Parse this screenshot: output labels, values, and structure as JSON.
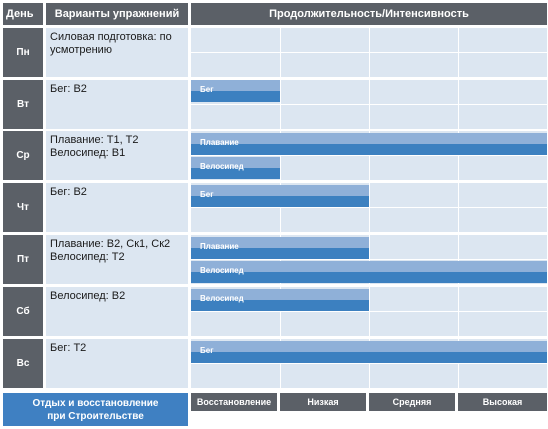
{
  "header": {
    "day": "День",
    "exercises": "Варианты упражнений",
    "duration": "Продолжительность/Интенсивность"
  },
  "rows": [
    {
      "day": "Пн",
      "exercise": "Силовая подготовка: по усмотрению",
      "bars": []
    },
    {
      "day": "Вт",
      "exercise": "Бег: В2",
      "bars": [
        {
          "label": "Бег",
          "end": 0.25
        }
      ]
    },
    {
      "day": "Ср",
      "exercise": "Плавание: Т1, Т2 Велосипед: В1",
      "bars": [
        {
          "label": "Плавание",
          "end": 1.0
        },
        {
          "label": "Велосипед",
          "end": 0.25
        }
      ]
    },
    {
      "day": "Чт",
      "exercise": "Бег: В2",
      "bars": [
        {
          "label": "Бег",
          "end": 0.5
        }
      ]
    },
    {
      "day": "Пт",
      "exercise": "Плавание: В2, Ск1, Ск2 Велосипед: Т2",
      "bars": [
        {
          "label": "Плавание",
          "end": 0.5
        },
        {
          "label": "Велосипед",
          "end": 1.0
        }
      ]
    },
    {
      "day": "Сб",
      "exercise": "Велосипед: В2",
      "bars": [
        {
          "label": "Велосипед",
          "end": 0.5
        }
      ]
    },
    {
      "day": "Вс",
      "exercise": "Бег: Т2",
      "bars": [
        {
          "label": "Бег",
          "end": 1.0
        }
      ]
    }
  ],
  "footer": {
    "rest_line1": "Отдых и восстановление",
    "rest_line2": "при Строительстве",
    "legend": [
      "Восстановление",
      "Низкая",
      "Средняя",
      "Высокая"
    ]
  },
  "colors": {
    "header_bg": "#5b6067",
    "cell_bg": "#dce6f1",
    "bar_light": "#8fb0d8",
    "bar_dark": "#3c80c0",
    "accent": "#3f80c2"
  }
}
